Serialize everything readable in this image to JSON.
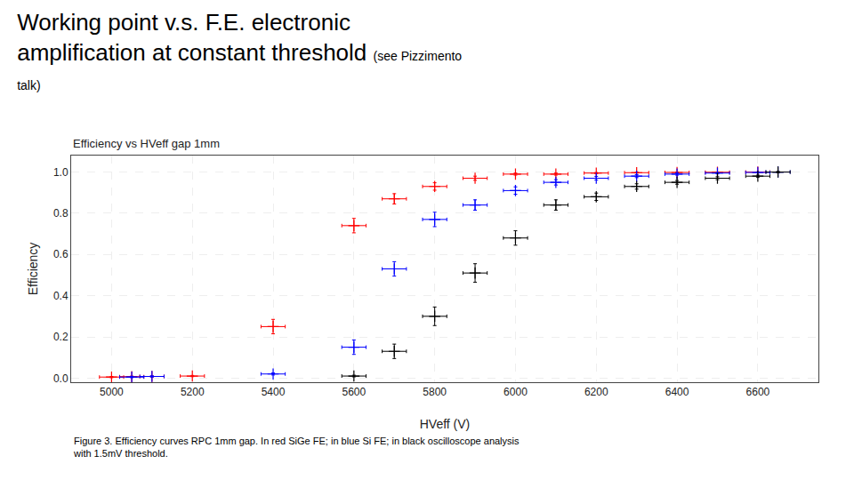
{
  "chart_data": {
    "type": "scatter",
    "title": "Working point v.s. F.E. electronic\namplification at constant threshold",
    "subtitle": "Efficiency vs HVeff gap 1mm",
    "annotations": [
      "(see Pizzimento\ntalk)",
      "Figure 3. Efficiency curves RPC 1mm gap. In red SiGe FE; in blue Si FE; in black oscilloscope analysis\nwith 1.5mV threshold."
    ],
    "x_label": "HVeff (V)",
    "y_label": "Efficiency",
    "xlim": [
      4900,
      6750
    ],
    "ylim": [
      -0.02,
      1.08
    ],
    "xticks": [
      5000,
      5200,
      5400,
      5600,
      5800,
      6000,
      6200,
      6400,
      6600
    ],
    "yticks": [
      {
        "value": 0,
        "label": "0.0"
      },
      0.2,
      0.4,
      0.6,
      0.8,
      {
        "value": 1.0,
        "label": "1.0"
      }
    ],
    "grid": true,
    "marker": "plus",
    "series": [
      {
        "color": "red",
        "x": [
          5000,
          5050,
          5100,
          5200,
          5400,
          5600,
          5700,
          5800,
          5900,
          6000,
          6100,
          6200,
          6300,
          6400,
          6500,
          6600
        ],
        "values": [
          0.005,
          0.007,
          0.008,
          0.01,
          0.25,
          0.74,
          0.87,
          0.93,
          0.97,
          0.99,
          0.99,
          0.995,
          0.997,
          0.998,
          0.999,
          1.0
        ],
        "x_errors": [
          30,
          30,
          30,
          30,
          30,
          30,
          30,
          30,
          30,
          30,
          30,
          30,
          30,
          30,
          30,
          30
        ],
        "y_errors": [
          0.003,
          0.003,
          0.003,
          0.003,
          0.035,
          0.035,
          0.025,
          0.018,
          0.01,
          0.005,
          0.005,
          0.003,
          0.002,
          0.002,
          0.001,
          0.001
        ]
      },
      {
        "color": "blue",
        "x": [
          5050,
          5100,
          5400,
          5600,
          5700,
          5800,
          5900,
          6000,
          6100,
          6200,
          6300,
          6400,
          6500,
          6600,
          6650
        ],
        "values": [
          0.005,
          0.008,
          0.02,
          0.15,
          0.53,
          0.77,
          0.84,
          0.91,
          0.95,
          0.97,
          0.98,
          0.99,
          0.995,
          0.998,
          1.0
        ],
        "x_errors": [
          30,
          30,
          30,
          30,
          30,
          30,
          30,
          30,
          30,
          30,
          30,
          30,
          30,
          30,
          30
        ],
        "y_errors": [
          0.003,
          0.003,
          0.005,
          0.035,
          0.035,
          0.035,
          0.025,
          0.018,
          0.013,
          0.009,
          0.007,
          0.005,
          0.003,
          0.002,
          0.001
        ]
      },
      {
        "color": "black",
        "x": [
          5600,
          5700,
          5800,
          5900,
          6000,
          6100,
          6200,
          6300,
          6400,
          6500,
          6600,
          6650
        ],
        "values": [
          0.01,
          0.13,
          0.3,
          0.51,
          0.68,
          0.84,
          0.88,
          0.93,
          0.95,
          0.97,
          0.98,
          1.0
        ],
        "x_errors": [
          30,
          30,
          30,
          30,
          30,
          30,
          30,
          30,
          30,
          30,
          30,
          30
        ],
        "y_errors": [
          0.004,
          0.035,
          0.045,
          0.045,
          0.035,
          0.025,
          0.018,
          0.013,
          0.009,
          0.007,
          0.005,
          0.003
        ]
      }
    ]
  }
}
